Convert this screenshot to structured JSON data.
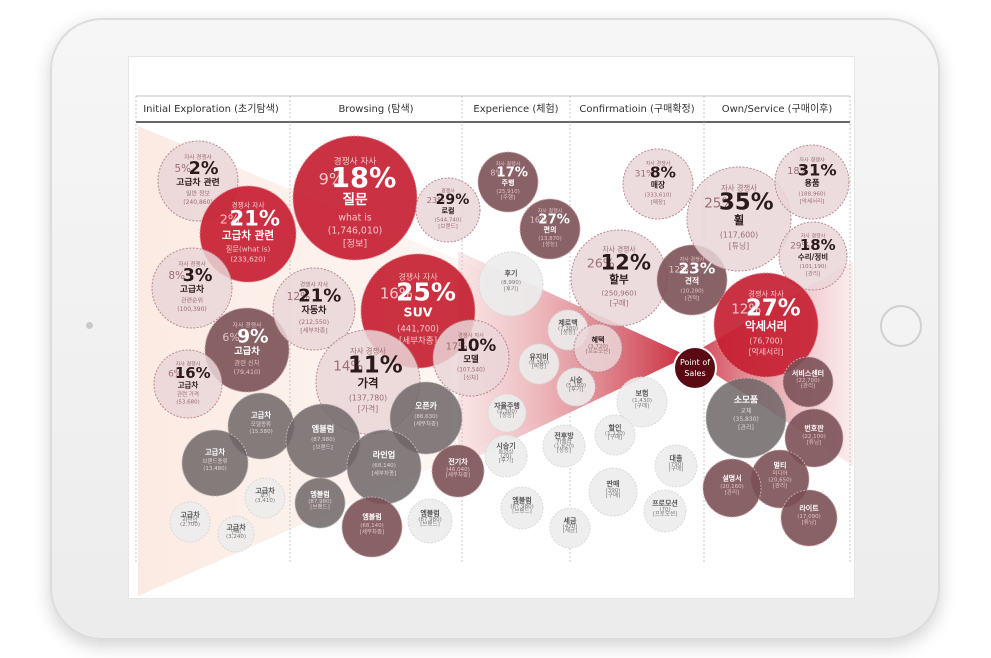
{
  "stages": [
    {
      "label": "Initial Exploration (초기탐색)"
    },
    {
      "label": "Browsing (탐색)"
    },
    {
      "label": "Experience (체험)"
    },
    {
      "label": "Confirmatioin (구매확정)"
    },
    {
      "label": "Own/Service (구매이후)"
    }
  ],
  "center": {
    "line1": "Point of",
    "line2": "Sales"
  },
  "colors": {
    "accent": "#c62032",
    "mauve": "#7b5157",
    "pink": "#ead6d8",
    "gray": "#6f6667",
    "lightgray": "#ececec"
  },
  "bubbles": [
    {
      "name": "initial-high-price-info",
      "color": "pink",
      "top": [
        "자사",
        "5%",
        "경쟁사",
        "2%"
      ],
      "lines": [
        "고급차 관련",
        "일반 정보",
        "(240,860)"
      ]
    },
    {
      "name": "initial-high-price-question",
      "color": "red",
      "top": [
        "경쟁사",
        "자사",
        "2%",
        "21%"
      ],
      "lines": [
        "고급차 관련",
        "질문(what is)",
        "(233,620)"
      ]
    },
    {
      "name": "initial-high-price-rank",
      "color": "pink",
      "top": [
        "자사",
        "8%",
        "경쟁사",
        "3%"
      ],
      "lines": [
        "고급차",
        "관련순위",
        "(100,390)"
      ]
    },
    {
      "name": "initial-luxury-new-car",
      "color": "mauve",
      "top": [
        "자사",
        "6%",
        "경쟁사",
        "9%"
      ],
      "lines": [
        "고급차",
        "관련 신차",
        "(79,410)"
      ]
    },
    {
      "name": "initial-luxury-price",
      "color": "pink",
      "top": [
        "자사",
        "6%",
        "경쟁사",
        "16%"
      ],
      "lines": [
        "고급차",
        "관련 가격",
        "(53,680)"
      ]
    },
    {
      "name": "initial-luxury-model-type",
      "color": "gray",
      "lines": [
        "고급차",
        "모델종류",
        "(15,580)"
      ]
    },
    {
      "name": "initial-luxury-brand-type",
      "color": "gray",
      "lines": [
        "고급차",
        "브랜드종류",
        "(13,480)"
      ]
    },
    {
      "name": "initial-luxury-review",
      "color": "light",
      "lines": [
        "고급차",
        "후기",
        "(3,410)"
      ]
    },
    {
      "name": "initial-luxury-lineup",
      "color": "light",
      "lines": [
        "고급차",
        "라인업",
        "(2,700)"
      ]
    },
    {
      "name": "initial-luxury-fuel",
      "color": "light",
      "lines": [
        "고급차",
        "연비",
        "(3,240)"
      ]
    },
    {
      "name": "browse-question",
      "color": "red",
      "top": [
        "경쟁사",
        "자사",
        "9%",
        "18%"
      ],
      "lines": [
        "질문",
        "what is",
        "(1,746,010)",
        "[정보]"
      ]
    },
    {
      "name": "browse-local",
      "color": "pink",
      "top": [
        "경쟁사",
        "23%",
        "29%"
      ],
      "lines": [
        "로컬",
        "(544,740)",
        "[브랜드]"
      ]
    },
    {
      "name": "browse-suv",
      "color": "red",
      "top": [
        "경쟁사",
        "자사",
        "16%",
        "25%"
      ],
      "lines": [
        "SUV",
        "(441,700)",
        "[세부차종]"
      ]
    },
    {
      "name": "browse-car-type",
      "color": "pink",
      "top": [
        "경쟁사",
        "자사",
        "12%",
        "21%"
      ],
      "lines": [
        "자동차",
        "(212,550)",
        "[세부차종]"
      ]
    },
    {
      "name": "browse-price",
      "color": "pink",
      "top": [
        "자사",
        "14%",
        "경쟁사",
        "11%"
      ],
      "lines": [
        "가격",
        "(137,780)",
        "[가격]"
      ]
    },
    {
      "name": "browse-emblem",
      "color": "gray",
      "lines": [
        "엠블럼",
        "(87,980)",
        "[브랜드]"
      ]
    },
    {
      "name": "browse-open-car",
      "color": "gray",
      "lines": [
        "오픈카",
        "(86,630)",
        "[세부차종]"
      ]
    },
    {
      "name": "browse-lineup",
      "color": "gray",
      "lines": [
        "라인업",
        "(68,140)",
        "[세부차종]"
      ]
    },
    {
      "name": "browse-electric",
      "color": "mauve",
      "lines": [
        "전기차",
        "(46,040)",
        "[세부차종]"
      ]
    },
    {
      "name": "browse-emblem-2",
      "color": "gray",
      "lines": [
        "엠블럼",
        "(87,980)",
        "[브랜드]"
      ]
    },
    {
      "name": "browse-emblem-3",
      "color": "mauve",
      "lines": [
        "엠블럼",
        "(68,140)",
        "[세부차종]"
      ]
    },
    {
      "name": "browse-emblem-4",
      "color": "light",
      "lines": [
        "엠블럼",
        "(87,980)",
        "[브랜드]"
      ]
    },
    {
      "name": "exp-drive",
      "color": "mauve",
      "top": [
        "자사",
        "8%",
        "경쟁사",
        "17%"
      ],
      "lines": [
        "주행",
        "(25,910)",
        "[주행]"
      ]
    },
    {
      "name": "exp-convenience",
      "color": "mauve",
      "top": [
        "자사",
        "16%",
        "경쟁사",
        "27%"
      ],
      "lines": [
        "편의",
        "(13,870)",
        "[성능]"
      ]
    },
    {
      "name": "exp-review",
      "color": "light",
      "lines": [
        "후기",
        "(8,990)",
        "[후기]"
      ]
    },
    {
      "name": "exp-model",
      "color": "pink",
      "top": [
        "17%",
        "경쟁사",
        "10%",
        "자사"
      ],
      "lines": [
        "모델",
        "(107,540)",
        "[신차]"
      ]
    },
    {
      "name": "exp-zero-back",
      "color": "light",
      "lines": [
        "제로백",
        "(7,380)",
        "[성능]"
      ]
    },
    {
      "name": "exp-maintenance",
      "color": "light",
      "lines": [
        "유지비",
        "(8,360)",
        "[비용]"
      ]
    },
    {
      "name": "exp-test-drive",
      "color": "light",
      "lines": [
        "시승",
        "(5,180)",
        "[후기]"
      ]
    },
    {
      "name": "exp-autonomous",
      "color": "light",
      "lines": [
        "자율주행",
        "(2,300)",
        "[성능]"
      ]
    },
    {
      "name": "exp-test-video",
      "color": "light",
      "lines": [
        "시승기",
        "동영상",
        "(20)",
        "[후기]"
      ]
    },
    {
      "name": "exp-rear-camera",
      "color": "light",
      "lines": [
        "전후방",
        "카메라",
        "(1,820)",
        "[성능]"
      ]
    },
    {
      "name": "exp-emblem",
      "color": "light",
      "lines": [
        "엠블럼",
        "(87,980)",
        "[브랜드]"
      ]
    },
    {
      "name": "conf-installment",
      "color": "pink",
      "top": [
        "자사",
        "26%",
        "경쟁사",
        "12%"
      ],
      "lines": [
        "할부",
        "(250,960)",
        "[구매]"
      ]
    },
    {
      "name": "conf-benefit",
      "color": "pink",
      "lines": [
        "혜택",
        "(3,720)",
        "[프로모션]"
      ]
    },
    {
      "name": "conf-store",
      "color": "pink",
      "top": [
        "자사",
        "31%",
        "경쟁사",
        "8%"
      ],
      "lines": [
        "매장",
        "(333,610)",
        "[매장]"
      ]
    },
    {
      "name": "conf-quote",
      "color": "mauve",
      "top": [
        "자사",
        "12%",
        "경쟁사",
        "23%"
      ],
      "lines": [
        "견적",
        "(10,280)",
        "[견적]"
      ]
    },
    {
      "name": "conf-insurance",
      "color": "light",
      "lines": [
        "보험",
        "(1,430)",
        "[구매]"
      ]
    },
    {
      "name": "conf-discount",
      "color": "light",
      "lines": [
        "할인",
        "(1,120)",
        "[구매]"
      ]
    },
    {
      "name": "conf-loan",
      "color": "light",
      "lines": [
        "대출",
        "(790)",
        "[구매]"
      ]
    },
    {
      "name": "conf-sale",
      "color": "light",
      "lines": [
        "판매",
        "(390)",
        "[구매]"
      ]
    },
    {
      "name": "conf-promotion",
      "color": "light",
      "lines": [
        "프로모션",
        "(70)",
        "[프로모션]"
      ]
    },
    {
      "name": "conf-tax",
      "color": "light",
      "lines": [
        "세금",
        "(470)",
        "[세금]"
      ]
    },
    {
      "name": "own-wheel",
      "color": "pink",
      "top": [
        "자사",
        "경쟁사",
        "25%",
        "35%"
      ],
      "lines": [
        "휠",
        "(117,600)",
        "[튜닝]"
      ]
    },
    {
      "name": "own-parts",
      "color": "pink",
      "top": [
        "자사",
        "18%",
        "경쟁사",
        "31%"
      ],
      "lines": [
        "용품",
        "(188,960)",
        "[악세서리]"
      ]
    },
    {
      "name": "own-repair",
      "color": "pink",
      "top": [
        "자사",
        "29%",
        "경쟁사",
        "18%"
      ],
      "lines": [
        "수리/정비",
        "(101,190)",
        "[관리]"
      ]
    },
    {
      "name": "own-accessory",
      "color": "red",
      "top": [
        "경쟁사",
        "자사",
        "12%",
        "27%"
      ],
      "lines": [
        "악세서리",
        "(76,700)",
        "[악세서리]"
      ]
    },
    {
      "name": "own-service-center",
      "color": "mauve",
      "lines": [
        "서비스센터",
        "(22,700)",
        "[관리]"
      ]
    },
    {
      "name": "own-consumables",
      "color": "gray",
      "lines": [
        "소모품",
        "교체",
        "(35,830)",
        "[관리]"
      ]
    },
    {
      "name": "own-plate",
      "color": "mauve",
      "lines": [
        "번호판",
        "(22,100)",
        "[튜닝]"
      ]
    },
    {
      "name": "own-multimedia",
      "color": "mauve",
      "lines": [
        "멀티",
        "미디어",
        "(20,650)",
        "[관리]"
      ]
    },
    {
      "name": "own-manual",
      "color": "mauve",
      "lines": [
        "설명서",
        "(20,160)",
        "[관리]"
      ]
    },
    {
      "name": "own-light",
      "color": "mauve",
      "lines": [
        "라이트",
        "(17,090)",
        "[튜닝]"
      ]
    }
  ]
}
